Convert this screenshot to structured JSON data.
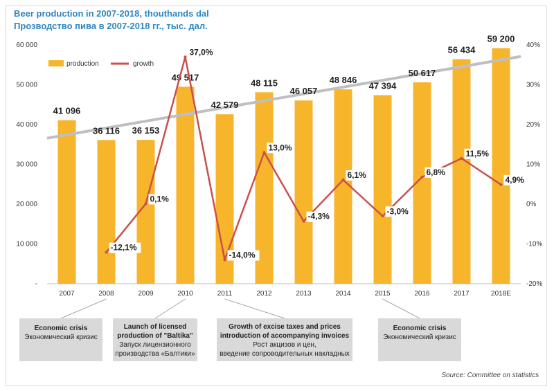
{
  "title": "Beer production in 2007-2018, thouthands dal",
  "subtitle": "Прозводство пива в 2007-2018 гг., тыс. дал.",
  "source": "Source: Committee on statistics",
  "colors": {
    "bar": "#f7b52c",
    "line": "#c9504b",
    "trend": "#bfbfbf",
    "title": "#2e86c1",
    "note_bg": "#d9d9d9"
  },
  "chart_data": {
    "type": "bar",
    "categories": [
      "2007",
      "2008",
      "2009",
      "2010",
      "2011",
      "2012",
      "2013",
      "2014",
      "2015",
      "2016",
      "2017",
      "2018E"
    ],
    "series": [
      {
        "name": "production",
        "type": "bar",
        "axis": "left",
        "values": [
          41096,
          36116,
          36153,
          49517,
          42579,
          48115,
          46057,
          48846,
          47394,
          50617,
          56434,
          59200
        ],
        "labels": [
          "41 096",
          "36 116",
          "36 153",
          "49 517",
          "42 579",
          "48 115",
          "46 057",
          "48 846",
          "47 394",
          "50 617",
          "56 434",
          "59 200"
        ]
      },
      {
        "name": "growth",
        "type": "line",
        "axis": "right",
        "values": [
          null,
          -12.1,
          0.1,
          37.0,
          -14.0,
          13.0,
          -4.3,
          6.1,
          -3.0,
          6.8,
          11.5,
          4.9
        ],
        "labels": [
          "",
          "-12,1%",
          "0,1%",
          "37,0%",
          "-14,0%",
          "13,0%",
          "-4,3%",
          "6,1%",
          "-3,0%",
          "6,8%",
          "11,5%",
          "4,9%"
        ]
      }
    ],
    "trendline": {
      "type": "linear",
      "of": "production"
    },
    "y_left": {
      "min": 0,
      "max": 60000,
      "ticks": [
        "-",
        "10 000",
        "20 000",
        "30 000",
        "40 000",
        "50 000",
        "60 000"
      ]
    },
    "y_right": {
      "min": -20,
      "max": 40,
      "ticks": [
        "-20%",
        "-10%",
        "0%",
        "10%",
        "20%",
        "30%",
        "40%"
      ]
    },
    "legend": {
      "placement": "top-left",
      "items": [
        "production",
        "growth"
      ]
    },
    "grid": false
  },
  "annotations": [
    {
      "year": "2008",
      "title": "Economic crisis",
      "text": [
        "Экономический кризис"
      ]
    },
    {
      "year": "2010",
      "title": "Launch of licensed production of \"Baltika\"",
      "title_lines": [
        "Launch of licensed",
        "production of \"Baltika\""
      ],
      "text": [
        "Запуск лицензионного",
        "производства «Балтики»"
      ]
    },
    {
      "year": "2011",
      "title": "Growth of excise taxes and prices introduction of accompanying invoices",
      "title_lines": [
        "Growth of excise taxes and prices",
        "introduction of accompanying invoices"
      ],
      "text": [
        "Рост акцизов и цен,",
        "введение сопроводительных накладных"
      ]
    },
    {
      "year": "2015",
      "title": "Economic crisis",
      "text": [
        "Экономический кризис"
      ]
    }
  ]
}
